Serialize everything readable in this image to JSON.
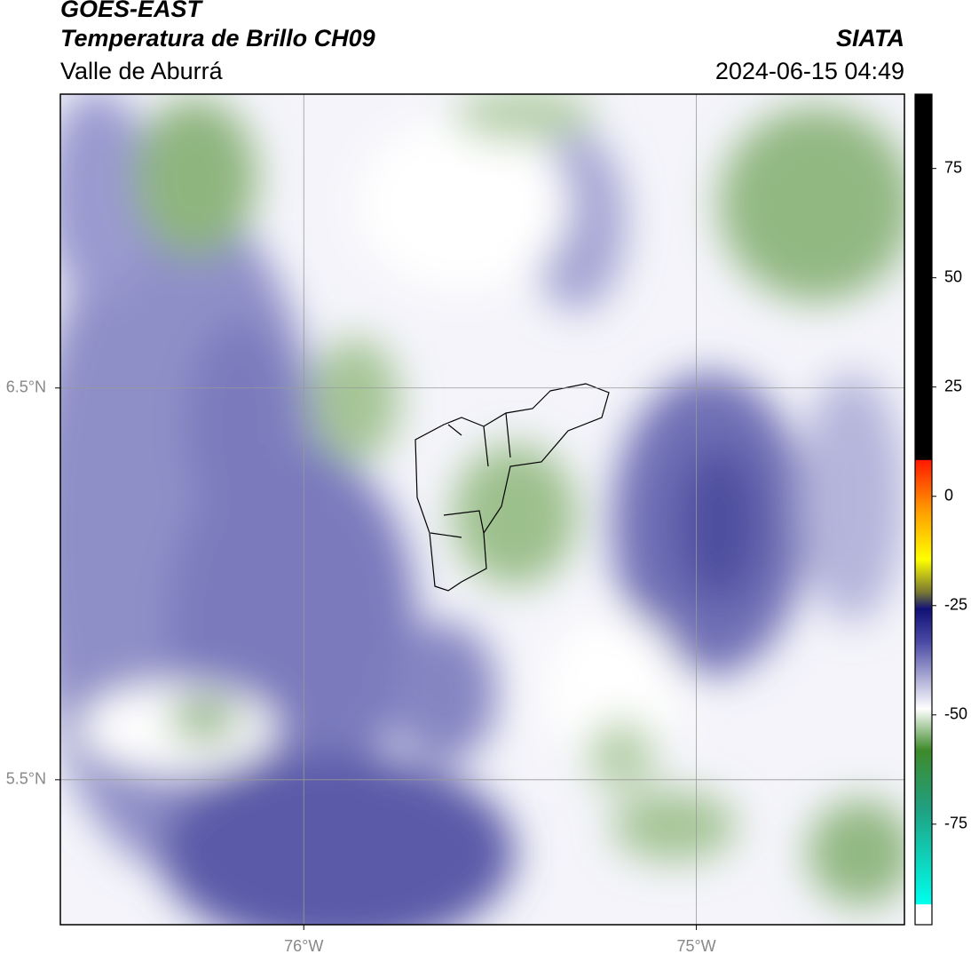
{
  "header": {
    "title": "GOES-EAST",
    "subtitle": "Temperatura de Brillo CH09",
    "region": "Valle de Aburrá",
    "source": "SIATA",
    "timestamp": "2024-06-15 04:49"
  },
  "map": {
    "xlim": [
      -76.62,
      -74.47
    ],
    "ylim": [
      5.13,
      7.25
    ],
    "xticks": [
      {
        "value": -76,
        "label": "76°W"
      },
      {
        "value": -75,
        "label": "75°W"
      }
    ],
    "yticks": [
      {
        "value": 5.5,
        "label": "5.5°N"
      },
      {
        "value": 6.5,
        "label": "6.5°N"
      }
    ],
    "grid": true
  },
  "colorbar": {
    "lim": [
      -98,
      92
    ],
    "ticks": [
      75,
      50,
      25,
      0,
      -25,
      -50,
      -75
    ]
  }
}
